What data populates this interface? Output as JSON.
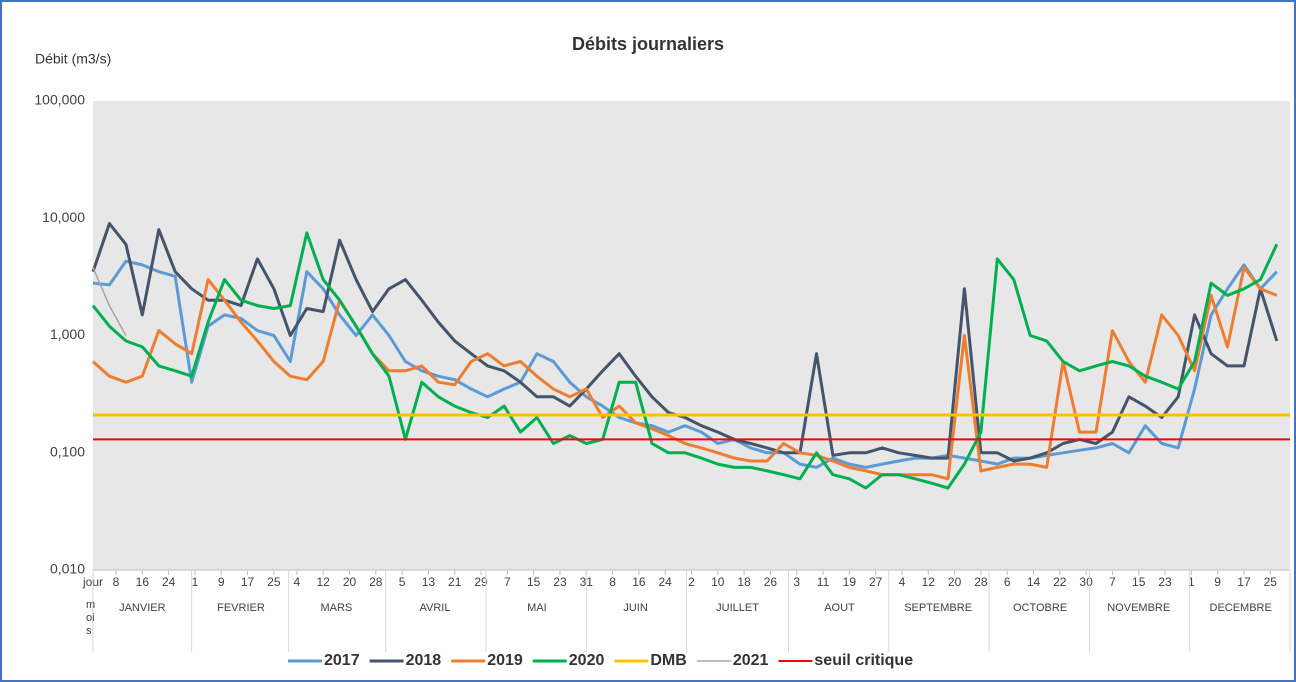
{
  "chart_data": {
    "type": "line",
    "title": "Débits journaliers",
    "ylabel": "Débit (m3/s)",
    "xlabel": "mois",
    "log_scale": true,
    "grid": false,
    "legend": "bottom",
    "ylim": [
      0.01,
      100
    ],
    "yticks": [
      {
        "value": 0.01,
        "label": "0,010"
      },
      {
        "value": 0.1,
        "label": "0,100"
      },
      {
        "value": 1,
        "label": "1,000"
      },
      {
        "value": 10,
        "label": "10,000"
      },
      {
        "value": 100,
        "label": "100,000"
      }
    ],
    "xlim": [
      1,
      365
    ],
    "xticks": [
      {
        "value": 1,
        "label": "jour"
      },
      {
        "value": 8,
        "label": "8"
      },
      {
        "value": 16,
        "label": "16"
      },
      {
        "value": 24,
        "label": "24"
      },
      {
        "value": 32,
        "label": "1"
      },
      {
        "value": 40,
        "label": "9"
      },
      {
        "value": 48,
        "label": "17"
      },
      {
        "value": 56,
        "label": "25"
      },
      {
        "value": 63,
        "label": "4"
      },
      {
        "value": 71,
        "label": "12"
      },
      {
        "value": 79,
        "label": "20"
      },
      {
        "value": 87,
        "label": "28"
      },
      {
        "value": 95,
        "label": "5"
      },
      {
        "value": 103,
        "label": "13"
      },
      {
        "value": 111,
        "label": "21"
      },
      {
        "value": 119,
        "label": "29"
      },
      {
        "value": 127,
        "label": "7"
      },
      {
        "value": 135,
        "label": "15"
      },
      {
        "value": 143,
        "label": "23"
      },
      {
        "value": 151,
        "label": "31"
      },
      {
        "value": 159,
        "label": "8"
      },
      {
        "value": 167,
        "label": "16"
      },
      {
        "value": 175,
        "label": "24"
      },
      {
        "value": 183,
        "label": "2"
      },
      {
        "value": 191,
        "label": "10"
      },
      {
        "value": 199,
        "label": "18"
      },
      {
        "value": 207,
        "label": "26"
      },
      {
        "value": 215,
        "label": "3"
      },
      {
        "value": 223,
        "label": "11"
      },
      {
        "value": 231,
        "label": "19"
      },
      {
        "value": 239,
        "label": "27"
      },
      {
        "value": 247,
        "label": "4"
      },
      {
        "value": 255,
        "label": "12"
      },
      {
        "value": 263,
        "label": "20"
      },
      {
        "value": 271,
        "label": "28"
      },
      {
        "value": 279,
        "label": "6"
      },
      {
        "value": 287,
        "label": "14"
      },
      {
        "value": 295,
        "label": "22"
      },
      {
        "value": 303,
        "label": "30"
      },
      {
        "value": 311,
        "label": "7"
      },
      {
        "value": 319,
        "label": "15"
      },
      {
        "value": 327,
        "label": "23"
      },
      {
        "value": 335,
        "label": "1"
      },
      {
        "value": 343,
        "label": "9"
      },
      {
        "value": 351,
        "label": "17"
      },
      {
        "value": 359,
        "label": "25"
      }
    ],
    "month_ticks": [
      {
        "value": 16,
        "label": "JANVIER"
      },
      {
        "value": 46,
        "label": "FEVRIER"
      },
      {
        "value": 75,
        "label": "MARS"
      },
      {
        "value": 105,
        "label": "AVRIL"
      },
      {
        "value": 136,
        "label": "MAI"
      },
      {
        "value": 166,
        "label": "JUIN"
      },
      {
        "value": 197,
        "label": "JUILLET"
      },
      {
        "value": 228,
        "label": "AOUT"
      },
      {
        "value": 258,
        "label": "SEPTEMBRE"
      },
      {
        "value": 289,
        "label": "OCTOBRE"
      },
      {
        "value": 319,
        "label": "NOVEMBRE"
      },
      {
        "value": 350,
        "label": "DECEMBRE"
      }
    ],
    "x": [
      1,
      6,
      11,
      16,
      21,
      26,
      31,
      36,
      41,
      46,
      51,
      56,
      61,
      66,
      71,
      76,
      81,
      86,
      91,
      96,
      101,
      106,
      111,
      116,
      121,
      126,
      131,
      136,
      141,
      146,
      151,
      156,
      161,
      166,
      171,
      176,
      181,
      186,
      191,
      196,
      201,
      206,
      211,
      216,
      221,
      226,
      231,
      236,
      241,
      246,
      251,
      256,
      261,
      266,
      271,
      276,
      281,
      286,
      291,
      296,
      301,
      306,
      311,
      316,
      321,
      326,
      331,
      336,
      341,
      346,
      351,
      356,
      361
    ],
    "series": [
      {
        "name": "2017",
        "color": "#5b9bd5",
        "values": [
          2.8,
          2.7,
          4.3,
          4.0,
          3.5,
          3.2,
          0.4,
          1.2,
          1.5,
          1.4,
          1.1,
          1.0,
          0.6,
          3.5,
          2.5,
          1.5,
          1.0,
          1.5,
          1.0,
          0.6,
          0.5,
          0.45,
          0.42,
          0.35,
          0.3,
          0.35,
          0.4,
          0.7,
          0.6,
          0.4,
          0.3,
          0.25,
          0.2,
          0.18,
          0.17,
          0.15,
          0.17,
          0.15,
          0.12,
          0.13,
          0.11,
          0.1,
          0.1,
          0.08,
          0.075,
          0.09,
          0.08,
          0.075,
          0.08,
          0.085,
          0.09,
          0.09,
          0.095,
          0.09,
          0.085,
          0.08,
          0.09,
          0.09,
          0.095,
          0.1,
          0.105,
          0.11,
          0.12,
          0.1,
          0.17,
          0.12,
          0.11,
          0.35,
          1.5,
          2.5,
          4.0,
          2.5,
          3.5
        ]
      },
      {
        "name": "2018",
        "color": "#44546a",
        "values": [
          3.5,
          9,
          6,
          1.5,
          8,
          3.5,
          2.5,
          2.0,
          2.0,
          1.8,
          4.5,
          2.5,
          1.0,
          1.7,
          1.6,
          6.5,
          3.0,
          1.6,
          2.5,
          3.0,
          2.0,
          1.3,
          0.9,
          0.7,
          0.55,
          0.5,
          0.4,
          0.3,
          0.3,
          0.25,
          0.35,
          0.5,
          0.7,
          0.45,
          0.3,
          0.22,
          0.2,
          0.17,
          0.15,
          0.13,
          0.12,
          0.11,
          0.1,
          0.1,
          0.7,
          0.095,
          0.1,
          0.1,
          0.11,
          0.1,
          0.095,
          0.09,
          0.09,
          2.5,
          0.1,
          0.1,
          0.085,
          0.09,
          0.1,
          0.12,
          0.13,
          0.12,
          0.15,
          0.3,
          0.25,
          0.2,
          0.3,
          1.5,
          0.7,
          0.55,
          0.55,
          2.5,
          0.9
        ]
      },
      {
        "name": "2019",
        "color": "#ed7d31",
        "values": [
          0.6,
          0.45,
          0.4,
          0.45,
          1.1,
          0.85,
          0.7,
          3.0,
          2.0,
          1.3,
          0.9,
          0.6,
          0.45,
          0.42,
          0.6,
          2.0,
          1.2,
          0.7,
          0.5,
          0.5,
          0.55,
          0.4,
          0.38,
          0.6,
          0.7,
          0.55,
          0.6,
          0.45,
          0.35,
          0.3,
          0.35,
          0.2,
          0.25,
          0.18,
          0.16,
          0.14,
          0.12,
          0.11,
          0.1,
          0.09,
          0.085,
          0.085,
          0.12,
          0.1,
          0.095,
          0.085,
          0.075,
          0.07,
          0.065,
          0.065,
          0.065,
          0.065,
          0.06,
          1.0,
          0.07,
          0.075,
          0.08,
          0.08,
          0.075,
          0.6,
          0.15,
          0.15,
          1.1,
          0.6,
          0.4,
          1.5,
          1.0,
          0.5,
          2.2,
          0.8,
          3.8,
          2.5,
          2.2
        ]
      },
      {
        "name": "2020",
        "color": "#00b050",
        "values": [
          1.8,
          1.2,
          0.9,
          0.8,
          0.55,
          0.5,
          0.45,
          1.3,
          3.0,
          2.0,
          1.8,
          1.7,
          1.8,
          7.5,
          3.0,
          2.0,
          1.2,
          0.7,
          0.45,
          0.13,
          0.4,
          0.3,
          0.25,
          0.22,
          0.2,
          0.25,
          0.15,
          0.2,
          0.12,
          0.14,
          0.12,
          0.13,
          0.4,
          0.4,
          0.12,
          0.1,
          0.1,
          0.09,
          0.08,
          0.075,
          0.075,
          0.07,
          0.065,
          0.06,
          0.1,
          0.065,
          0.06,
          0.05,
          0.065,
          0.065,
          0.06,
          0.055,
          0.05,
          0.08,
          0.15,
          4.5,
          3.0,
          1.0,
          0.9,
          0.6,
          0.5,
          0.55,
          0.6,
          0.55,
          0.45,
          0.4,
          0.35,
          0.6,
          2.8,
          2.2,
          2.5,
          3.0,
          6.0
        ]
      },
      {
        "name": "DMB",
        "color": "#ffc000",
        "value": 0.21
      },
      {
        "name": "2021",
        "color": "#a5a5a5",
        "x": [
          1,
          6,
          11
        ],
        "values": [
          3.8,
          1.8,
          1.0
        ]
      },
      {
        "name": "seuil critique",
        "color": "#ff0000",
        "value": 0.13
      }
    ]
  }
}
